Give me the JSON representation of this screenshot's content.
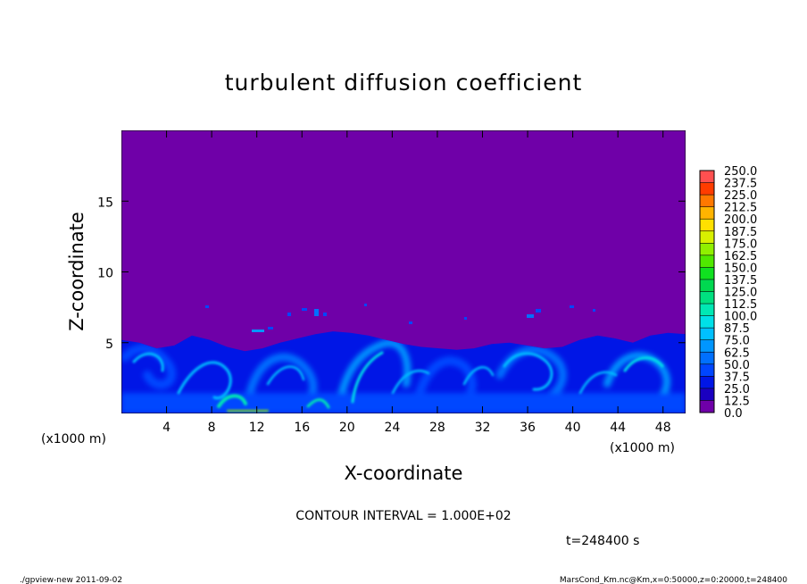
{
  "chart_data": {
    "type": "heatmap",
    "title": "turbulent diffusion coefficient",
    "xlabel": "X-coordinate",
    "ylabel": "Z-coordinate",
    "x_units": "(x1000 m)",
    "y_units": "(x1000 m)",
    "xlim": [
      0,
      50
    ],
    "ylim": [
      0,
      20
    ],
    "x_ticks": [
      "4",
      "8",
      "12",
      "16",
      "20",
      "24",
      "28",
      "32",
      "36",
      "40",
      "44",
      "48"
    ],
    "y_ticks": [
      "5",
      "10",
      "15"
    ],
    "colorbar_levels": [
      "0.0",
      "12.5",
      "25.0",
      "37.5",
      "50.0",
      "62.5",
      "75.0",
      "87.5",
      "100.0",
      "112.5",
      "125.0",
      "137.5",
      "150.0",
      "162.5",
      "175.0",
      "187.5",
      "200.0",
      "212.5",
      "225.0",
      "237.5",
      "250.0"
    ],
    "colorbar_colors": [
      "#6f00a8",
      "#1a00c0",
      "#0016e6",
      "#0046ff",
      "#0070ff",
      "#0096ff",
      "#00c0ff",
      "#00e0e8",
      "#00e8b4",
      "#00e080",
      "#00d850",
      "#10e020",
      "#50e800",
      "#90f000",
      "#d8f000",
      "#ffe000",
      "#ffb400",
      "#ff7800",
      "#ff3c00",
      "#ff5050",
      "#ff8c8c"
    ],
    "background_value": "0.0",
    "boundary_layer_top_km": [
      5.2,
      5.0,
      4.6,
      4.8,
      5.5,
      5.2,
      4.7,
      4.4,
      4.6,
      5.0,
      5.3,
      5.6,
      5.8,
      5.7,
      5.5,
      5.2,
      4.9,
      4.7,
      4.6,
      4.5,
      4.6,
      4.9,
      5.0,
      4.8,
      4.6,
      4.7,
      5.2,
      5.5,
      5.3,
      5.0,
      5.5,
      5.7,
      5.6
    ]
  },
  "annotations": {
    "contour_interval": "CONTOUR INTERVAL = 1.000E+02",
    "time": "t=248400 s",
    "footer_left": "./gpview-new   2011-09-02",
    "footer_right": "MarsCond_Km.nc@Km,x=0:50000,z=0:20000,t=248400"
  }
}
